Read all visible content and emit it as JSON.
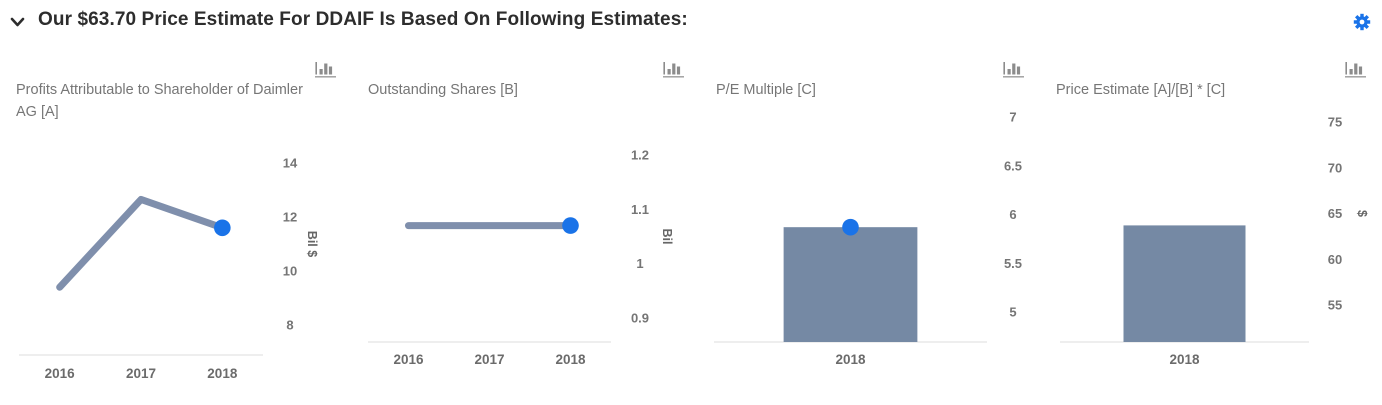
{
  "header": {
    "title": "Our $63.70 Price Estimate For DDAIF Is Based On Following Estimates:",
    "collapse_icon": "chevron-down-icon",
    "settings_icon": "gear-icon"
  },
  "colors": {
    "accent_blue": "#1a73e8",
    "series_line": "#7f8fac",
    "series_bar": "#7589a4",
    "dot": "#1a73e8",
    "axis_line": "#dcdcdc",
    "text_gray": "#757575",
    "header_text": "#2d2d2d"
  },
  "chart_toolbar_icon": "bar-chart-icon",
  "chart_data": [
    {
      "type": "line",
      "title": "Profits Attributable to Shareholder of Daimler AG [A]",
      "categories": [
        "2016",
        "2017",
        "2018"
      ],
      "values": [
        9.4,
        12.65,
        11.6
      ],
      "yticks": [
        14,
        12,
        10,
        8
      ],
      "ylim": [
        7.5,
        14
      ],
      "ylabel": "Bil $",
      "xlabel": "",
      "grid": false,
      "legend": "none",
      "highlight_last_point": true
    },
    {
      "type": "line",
      "title": "Outstanding Shares [B]",
      "categories": [
        "2016",
        "2017",
        "2018"
      ],
      "values": [
        1.07,
        1.07,
        1.07
      ],
      "yticks": [
        1.2,
        1.1,
        1,
        0.9
      ],
      "ylim": [
        0.85,
        1.2
      ],
      "ylabel": "Bil",
      "xlabel": "",
      "grid": false,
      "legend": "none",
      "highlight_last_point": true
    },
    {
      "type": "bar",
      "title": "P/E Multiple [C]",
      "categories": [
        "2018"
      ],
      "values": [
        5.87
      ],
      "yticks": [
        7,
        6.5,
        6,
        5.5,
        5
      ],
      "ylim": [
        4.7,
        7
      ],
      "ylabel": "",
      "xlabel": "",
      "grid": false,
      "legend": "none",
      "highlight_last_point": true
    },
    {
      "type": "bar",
      "title": "Price Estimate [A]/[B] * [C]",
      "categories": [
        "2018"
      ],
      "values": [
        63.7
      ],
      "yticks": [
        75,
        70,
        65,
        60,
        55
      ],
      "ylim": [
        51,
        75
      ],
      "ylabel": "$",
      "xlabel": "",
      "grid": false,
      "legend": "none",
      "highlight_last_point": false
    }
  ]
}
